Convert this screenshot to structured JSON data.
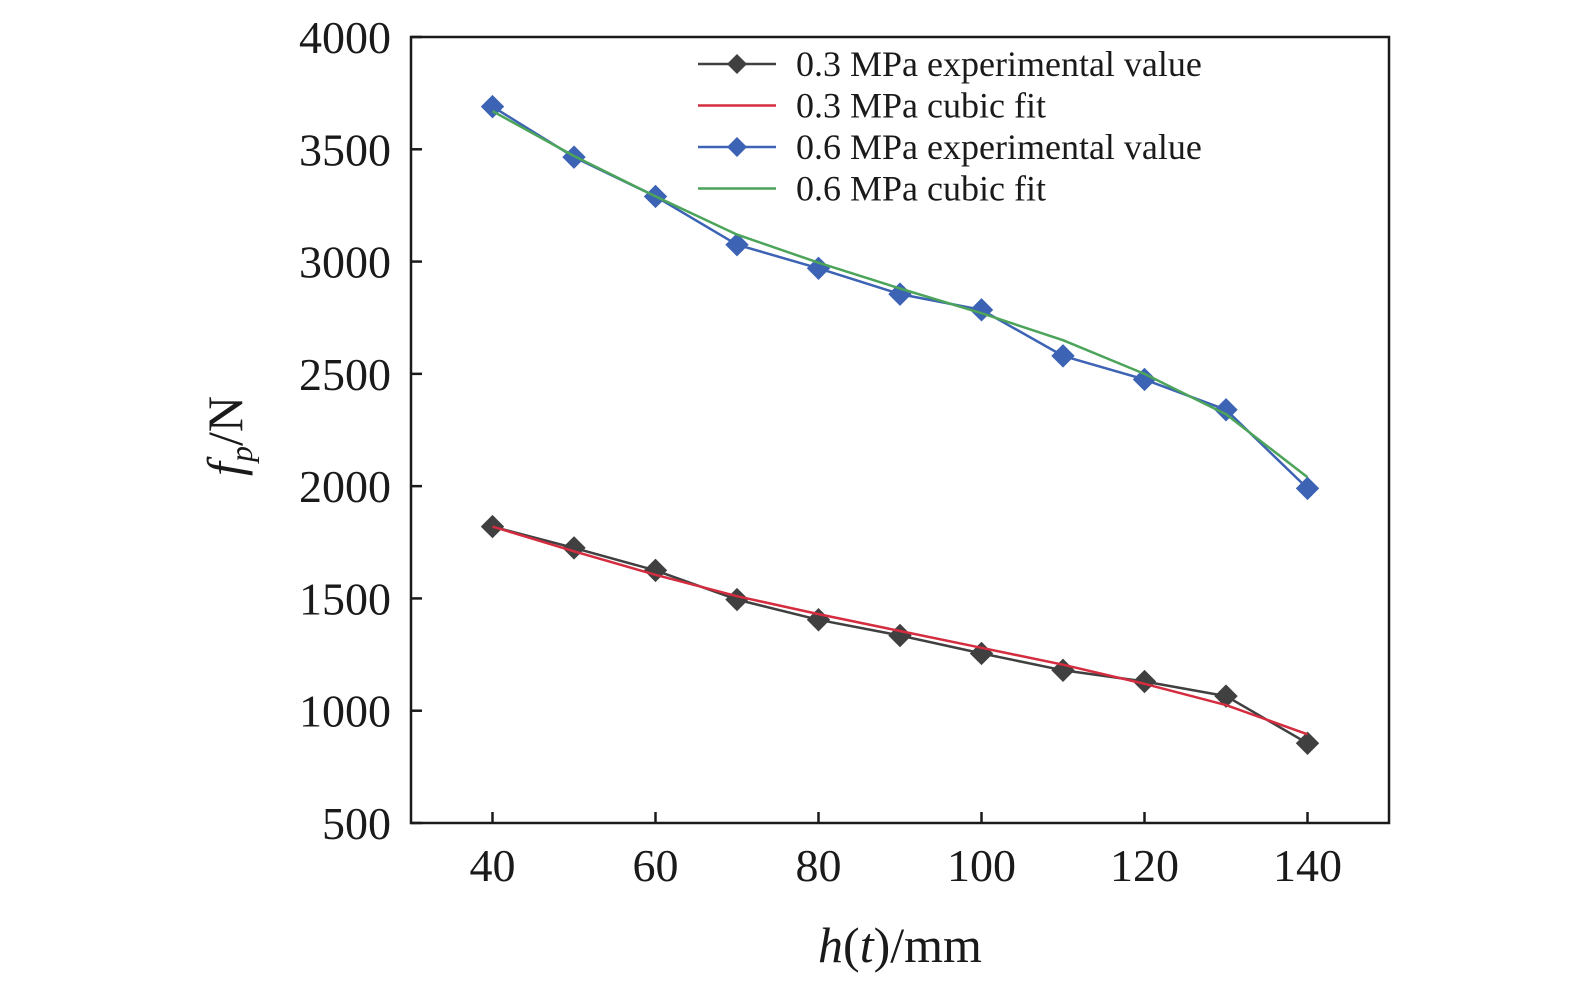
{
  "chart_data": {
    "type": "line",
    "xlabel": {
      "italic": "h",
      "open": "(",
      "t": "t",
      "close": ")/mm"
    },
    "ylabel": {
      "f": "f",
      "sub": "p",
      "rest": "/N"
    },
    "xlim": [
      30,
      150
    ],
    "ylim": [
      500,
      4000
    ],
    "xticks": [
      40,
      60,
      80,
      100,
      120,
      140
    ],
    "yticks": [
      500,
      1000,
      1500,
      2000,
      2500,
      3000,
      3500,
      4000
    ],
    "grid": false,
    "legend_position": "top-right",
    "x": [
      40,
      50,
      60,
      70,
      80,
      90,
      100,
      110,
      120,
      130,
      140
    ],
    "series": [
      {
        "name": "0.3 MPa experimental value",
        "color": "#404040",
        "marker": "diamond",
        "values": [
          1820,
          1725,
          1625,
          1495,
          1405,
          1335,
          1255,
          1180,
          1130,
          1065,
          855
        ]
      },
      {
        "name": "0.3 MPa cubic fit",
        "color": "#d42d3f",
        "marker": "none",
        "values": [
          1820,
          1710,
          1605,
          1510,
          1430,
          1355,
          1280,
          1205,
          1120,
          1025,
          895
        ]
      },
      {
        "name": "0.6 MPa experimental value",
        "color": "#3d63b4",
        "marker": "diamond",
        "values": [
          3690,
          3465,
          3290,
          3075,
          2970,
          2855,
          2785,
          2580,
          2475,
          2340,
          1990
        ]
      },
      {
        "name": "0.6 MPa cubic fit",
        "color": "#4ca45a",
        "marker": "none",
        "values": [
          3670,
          3470,
          3290,
          3120,
          2995,
          2880,
          2770,
          2650,
          2500,
          2320,
          2040
        ]
      }
    ]
  }
}
